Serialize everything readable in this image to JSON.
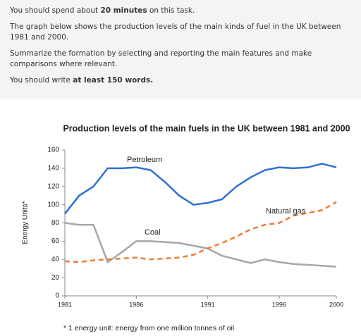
{
  "instructions": [
    {
      "before": "You should spend about ",
      "bold": "20 minutes",
      "after": " on this task."
    },
    {
      "text": "The graph below shows the production levels of the main kinds of fuel in the UK between 1981 and 2000."
    },
    {
      "text": "Summarize the formation by selecting and reporting the main features and make comparisons where relevant."
    },
    {
      "before": "You should write ",
      "bold": "at least 150 words."
    }
  ],
  "chart_data": {
    "type": "line",
    "title": "Production levels of the main fuels in the UK between 1981 and 2000",
    "y_label": "Energy Units*",
    "footnote": "* 1 energy unit: energy from one million tonnes of oil",
    "x": [
      1981,
      1982,
      1983,
      1984,
      1985,
      1986,
      1987,
      1988,
      1989,
      1990,
      1991,
      1992,
      1993,
      1994,
      1995,
      1996,
      1997,
      1998,
      1999,
      2000
    ],
    "xlim": [
      1981,
      2000
    ],
    "xticks": [
      1981,
      1986,
      1991,
      1996,
      2000
    ],
    "ylim": [
      0,
      160
    ],
    "yticks": [
      0,
      20,
      40,
      60,
      80,
      100,
      120,
      140,
      160
    ],
    "series": [
      {
        "name": "Petroleum",
        "color": "#2e6fd8",
        "values": [
          90,
          110,
          120,
          140,
          140,
          141,
          138,
          125,
          110,
          100,
          102,
          106,
          120,
          130,
          138,
          141,
          140,
          141,
          145,
          141
        ]
      },
      {
        "name": "Coal",
        "color": "#a6a6a6",
        "values": [
          80,
          78,
          78,
          37,
          48,
          60,
          60,
          59,
          58,
          55,
          52,
          44,
          40,
          36,
          40,
          37,
          35,
          34,
          33,
          32
        ]
      },
      {
        "name": "Natural gas",
        "color": "#ed7d31",
        "dashed": true,
        "values": [
          38,
          37,
          39,
          40,
          41,
          42,
          40,
          41,
          42,
          45,
          52,
          58,
          65,
          73,
          78,
          80,
          88,
          91,
          94,
          103
        ]
      }
    ]
  }
}
